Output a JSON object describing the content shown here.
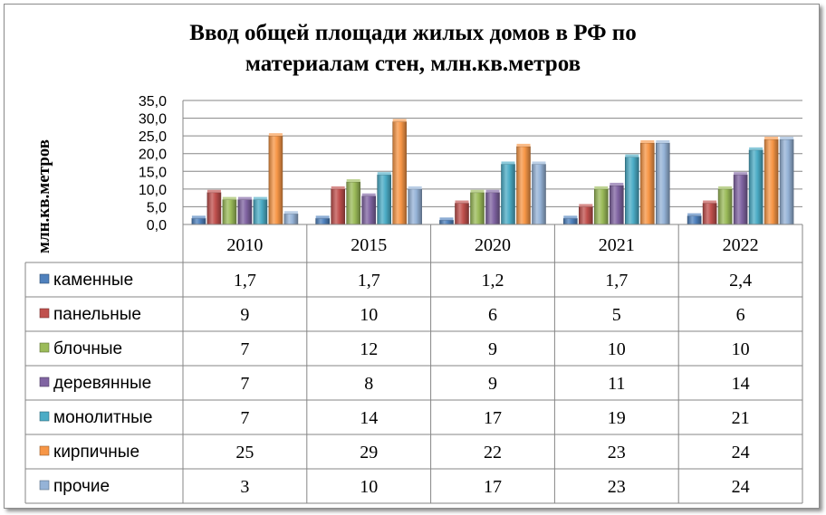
{
  "chart_data": {
    "type": "bar",
    "title_lines": [
      "Ввод общей площади жилых домов в РФ по",
      "материалам стен, млн.кв.метров"
    ],
    "ylabel": "млн.кв.метров",
    "ylim": [
      0,
      35
    ],
    "yticks": [
      "0,0",
      "5,0",
      "10,0",
      "15,0",
      "20,0",
      "25,0",
      "30,0",
      "35,0"
    ],
    "categories": [
      "2010",
      "2015",
      "2020",
      "2021",
      "2022"
    ],
    "grid": true,
    "legend_placement": "table-left",
    "series": [
      {
        "name": "каменные",
        "color": "#4F81BD",
        "values": [
          1.7,
          1.7,
          1.2,
          1.7,
          2.4
        ],
        "labels": [
          "1,7",
          "1,7",
          "1,2",
          "1,7",
          "2,4"
        ]
      },
      {
        "name": "панельные",
        "color": "#C0504D",
        "values": [
          9,
          10,
          6,
          5,
          6
        ],
        "labels": [
          "9",
          "10",
          "6",
          "5",
          "6"
        ]
      },
      {
        "name": "блочные",
        "color": "#9BBB59",
        "values": [
          7,
          12,
          9,
          10,
          10
        ],
        "labels": [
          "7",
          "12",
          "9",
          "10",
          "10"
        ]
      },
      {
        "name": "деревянные",
        "color": "#8064A2",
        "values": [
          7,
          8,
          9,
          11,
          14
        ],
        "labels": [
          "7",
          "8",
          "9",
          "11",
          "14"
        ]
      },
      {
        "name": "монолитные",
        "color": "#4BACC6",
        "values": [
          7,
          14,
          17,
          19,
          21
        ],
        "labels": [
          "7",
          "14",
          "17",
          "19",
          "21"
        ]
      },
      {
        "name": "кирпичные",
        "color": "#F79646",
        "values": [
          25,
          29,
          22,
          23,
          24
        ],
        "labels": [
          "25",
          "29",
          "22",
          "23",
          "24"
        ]
      },
      {
        "name": "прочие",
        "color": "#95B3D7",
        "values": [
          3,
          10,
          17,
          23,
          24
        ],
        "labels": [
          "3",
          "10",
          "17",
          "23",
          "24"
        ]
      }
    ]
  }
}
